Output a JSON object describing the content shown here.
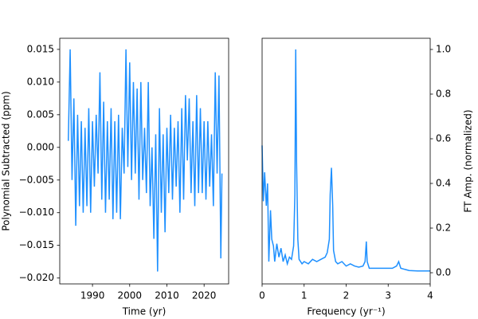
{
  "chart_data": [
    {
      "type": "line",
      "color": "#1e90ff",
      "xlabel": "Time (yr)",
      "ylabel": "Polynomial Subtracted (ppm)",
      "y_axis_position": "left",
      "xlim": [
        1981.2,
        2026.6
      ],
      "xticks": [
        1990,
        2000,
        2010,
        2020
      ],
      "ylim": [
        -0.0209,
        0.0167
      ],
      "yticks": [
        {
          "value": -0.02,
          "label": "−0.020"
        },
        {
          "value": -0.015,
          "label": "−0.015"
        },
        {
          "value": -0.01,
          "label": "−0.010"
        },
        {
          "value": -0.005,
          "label": "−0.005"
        },
        {
          "value": 0,
          "label": "0.000"
        },
        {
          "value": 0.005,
          "label": "0.005"
        },
        {
          "value": 0.01,
          "label": "0.010"
        },
        {
          "value": 0.015,
          "label": "0.015"
        }
      ],
      "x": [
        1983.5,
        1984.0,
        1984.5,
        1985.0,
        1985.5,
        1986.0,
        1986.5,
        1987.0,
        1987.5,
        1988.0,
        1988.5,
        1989.0,
        1989.5,
        1990.0,
        1990.5,
        1991.0,
        1991.5,
        1992.0,
        1992.5,
        1993.0,
        1993.5,
        1994.0,
        1994.5,
        1995.0,
        1995.5,
        1996.0,
        1996.5,
        1997.0,
        1997.5,
        1998.0,
        1998.5,
        1999.0,
        1999.5,
        2000.0,
        2000.5,
        2001.0,
        2001.5,
        2002.0,
        2002.5,
        2003.0,
        2003.5,
        2004.0,
        2004.5,
        2005.0,
        2005.5,
        2006.0,
        2006.5,
        2007.0,
        2007.5,
        2008.0,
        2008.5,
        2009.0,
        2009.5,
        2010.0,
        2010.5,
        2011.0,
        2011.5,
        2012.0,
        2012.5,
        2013.0,
        2013.5,
        2014.0,
        2014.5,
        2015.0,
        2015.5,
        2016.0,
        2016.5,
        2017.0,
        2017.5,
        2018.0,
        2018.5,
        2019.0,
        2019.5,
        2020.0,
        2020.5,
        2021.0,
        2021.5,
        2022.0,
        2022.5,
        2023.0,
        2023.5,
        2024.0,
        2024.5,
        2024.8
      ],
      "values": [
        0.001,
        0.015,
        -0.005,
        0.0075,
        -0.012,
        0.005,
        -0.009,
        0.004,
        -0.01,
        0.003,
        -0.009,
        0.006,
        -0.01,
        0.004,
        -0.006,
        0.005,
        -0.004,
        0.0115,
        -0.008,
        0.007,
        -0.01,
        0.004,
        -0.008,
        0.006,
        -0.011,
        0.004,
        -0.01,
        0.005,
        -0.011,
        0.003,
        -0.004,
        0.015,
        -0.003,
        0.013,
        -0.005,
        0.01,
        -0.004,
        0.009,
        -0.008,
        0.01,
        -0.005,
        0.003,
        -0.007,
        0.01,
        -0.009,
        0.0,
        -0.014,
        0.002,
        -0.019,
        0.006,
        -0.01,
        0.002,
        -0.013,
        0.003,
        -0.007,
        0.005,
        -0.008,
        0.003,
        -0.006,
        0.004,
        -0.01,
        0.006,
        -0.008,
        0.008,
        -0.002,
        0.0075,
        -0.007,
        0.004,
        -0.009,
        0.008,
        -0.007,
        0.006,
        -0.007,
        0.004,
        -0.008,
        0.004,
        -0.006,
        0.002,
        -0.009,
        0.0115,
        -0.004,
        0.011,
        -0.017,
        -0.004
      ]
    },
    {
      "type": "line",
      "color": "#1e90ff",
      "xlabel": "Frequency (yr⁻¹)",
      "ylabel": "FT Amp. (normalized)",
      "y_axis_position": "right",
      "xlim": [
        0,
        4
      ],
      "xticks": [
        0,
        1,
        2,
        3,
        4
      ],
      "ylim": [
        -0.05,
        1.05
      ],
      "yticks": [
        {
          "value": 0,
          "label": "0.0"
        },
        0.2,
        0.4,
        0.6,
        0.8,
        {
          "value": 1,
          "label": "1.0"
        }
      ],
      "x": [
        0,
        0.03,
        0.06,
        0.1,
        0.13,
        0.16,
        0.2,
        0.23,
        0.27,
        0.3,
        0.35,
        0.4,
        0.45,
        0.5,
        0.55,
        0.6,
        0.65,
        0.7,
        0.75,
        0.78,
        0.8,
        0.82,
        0.85,
        0.88,
        0.95,
        1.0,
        1.1,
        1.2,
        1.3,
        1.4,
        1.5,
        1.55,
        1.6,
        1.62,
        1.65,
        1.68,
        1.7,
        1.75,
        1.8,
        1.9,
        2.0,
        2.1,
        2.2,
        2.3,
        2.4,
        2.45,
        2.48,
        2.5,
        2.55,
        2.7,
        2.9,
        3.1,
        3.2,
        3.25,
        3.3,
        3.5,
        3.7,
        3.9,
        4.0
      ],
      "values": [
        0.57,
        0.32,
        0.45,
        0.3,
        0.4,
        0.05,
        0.28,
        0.15,
        0.12,
        0.05,
        0.13,
        0.07,
        0.11,
        0.05,
        0.08,
        0.04,
        0.07,
        0.06,
        0.12,
        0.35,
        1.0,
        0.5,
        0.15,
        0.06,
        0.04,
        0.05,
        0.04,
        0.06,
        0.05,
        0.06,
        0.07,
        0.09,
        0.15,
        0.35,
        0.47,
        0.3,
        0.1,
        0.05,
        0.04,
        0.05,
        0.03,
        0.04,
        0.03,
        0.025,
        0.03,
        0.05,
        0.14,
        0.05,
        0.02,
        0.02,
        0.02,
        0.02,
        0.03,
        0.05,
        0.02,
        0.01,
        0.008,
        0.008,
        0.008
      ]
    }
  ]
}
